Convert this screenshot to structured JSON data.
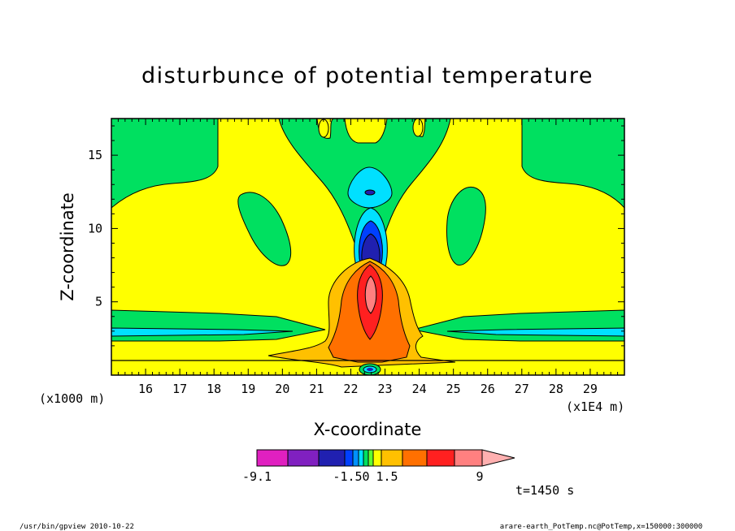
{
  "chart_data": {
    "type": "contour",
    "title": "disturbunce of potential temperature",
    "xlabel": "X-coordinate",
    "ylabel": "Z-coordinate",
    "x_unit_label": "(x1E4 m)",
    "y_unit_label": "(x1000 m)",
    "x_ticks": [
      16,
      17,
      18,
      19,
      20,
      21,
      22,
      23,
      24,
      25,
      26,
      27,
      28,
      29
    ],
    "y_ticks": [
      5,
      10,
      15
    ],
    "xlim": [
      15.0,
      30.0
    ],
    "ylim": [
      0.0,
      17.5
    ],
    "colorbar": {
      "labels": [
        "-9.1",
        "-1.50",
        "1.5",
        "9"
      ],
      "colors": [
        "#e020c0",
        "#8020c0",
        "#2020b0",
        "#0040ff",
        "#0090ff",
        "#00e0ff",
        "#00e060",
        "#60ff30",
        "#ffff00",
        "#ffc000",
        "#ff7000",
        "#ff2020",
        "#ff8080",
        "#ffb0b0"
      ]
    },
    "time_label": "t=1450 s",
    "footer_left": "/usr/bin/gpview   2010-10-22",
    "footer_right": "arare-earth_PotTemp.nc@PotTemp,x=150000:300000"
  }
}
